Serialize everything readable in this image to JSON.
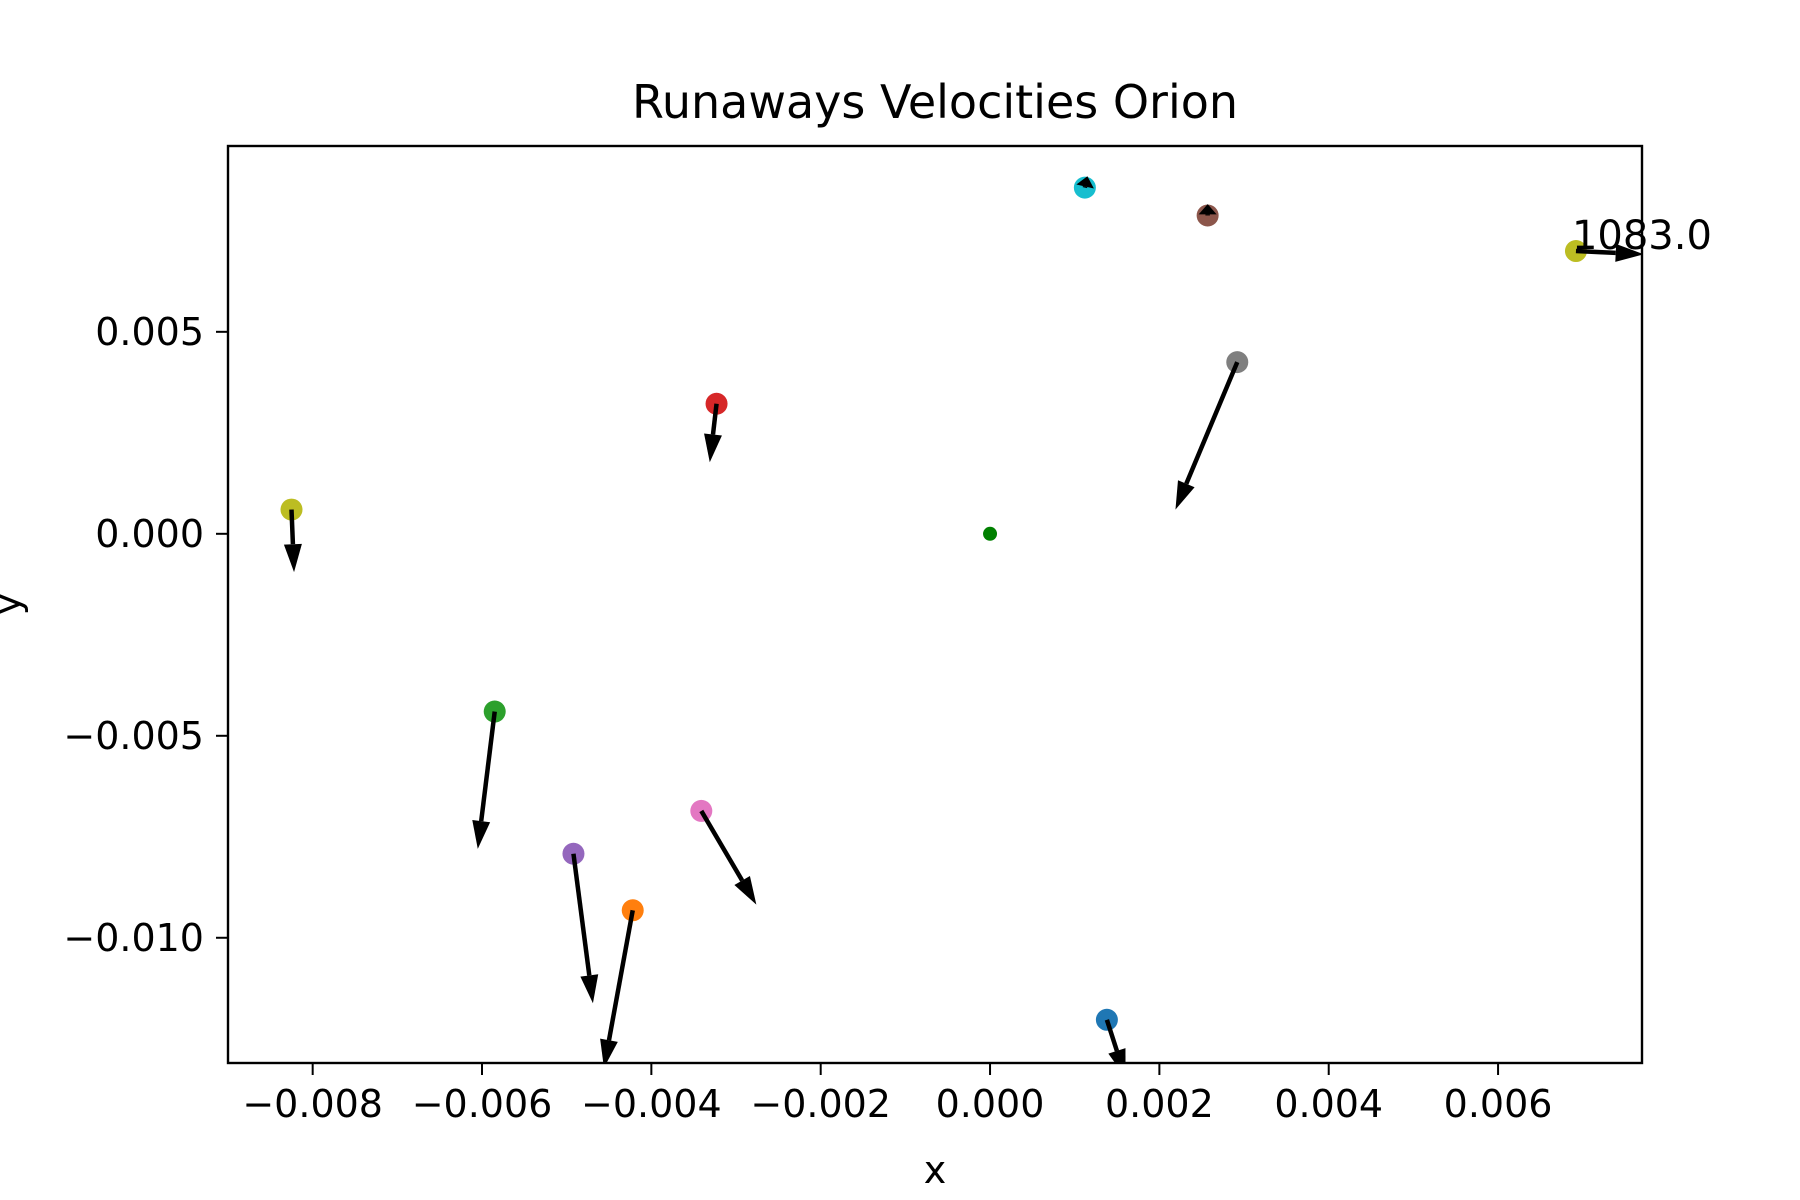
{
  "chart_data": {
    "type": "scatter",
    "title": "Runaways Velocities Orion",
    "xlabel": "x",
    "ylabel": "y",
    "xlim": [
      -0.009,
      0.0077
    ],
    "ylim": [
      -0.0131,
      0.0096
    ],
    "xticks": [
      -0.008,
      -0.006,
      -0.004,
      -0.002,
      0.0,
      0.002,
      0.004,
      0.006
    ],
    "xtick_labels": [
      "−0.008",
      "−0.006",
      "−0.004",
      "−0.002",
      "0.000",
      "0.002",
      "0.004",
      "0.006"
    ],
    "yticks": [
      0.005,
      0.0,
      -0.005,
      -0.01
    ],
    "ytick_labels": [
      "0.005",
      "0.000",
      "−0.005",
      "−0.010"
    ],
    "grid": false,
    "center": {
      "x": 0.0,
      "y": 0.0,
      "color": "#008000"
    },
    "points": [
      {
        "x": 0.00138,
        "y": -0.01203,
        "dx": 0.00022,
        "dy": -0.00143,
        "color": "#1f77b4"
      },
      {
        "x": -0.00422,
        "y": -0.00932,
        "dx": -0.00034,
        "dy": -0.0039,
        "color": "#ff7f0e"
      },
      {
        "x": -0.00585,
        "y": -0.0044,
        "dx": -0.0002,
        "dy": -0.0034,
        "color": "#2ca02c"
      },
      {
        "x": -0.00323,
        "y": 0.00322,
        "dx": -8e-05,
        "dy": -0.00145,
        "color": "#d62728"
      },
      {
        "x": -0.00492,
        "y": -0.00792,
        "dx": 0.00023,
        "dy": -0.0037,
        "color": "#9467bd"
      },
      {
        "x": 0.00257,
        "y": 0.00788,
        "dx": 0.0,
        "dy": 0.00028,
        "color": "#8c564b"
      },
      {
        "x": -0.00341,
        "y": -0.00686,
        "dx": 0.00065,
        "dy": -0.00232,
        "color": "#e377c2"
      },
      {
        "x": 0.00292,
        "y": 0.00425,
        "dx": -0.00073,
        "dy": -0.00365,
        "color": "#7f7f7f"
      },
      {
        "x": -0.00825,
        "y": 0.0006,
        "dx": 3e-05,
        "dy": -0.00155,
        "color": "#bcbd22"
      },
      {
        "x": 0.00112,
        "y": 0.00857,
        "dx": 3e-05,
        "dy": 0.00028,
        "color": "#17becf"
      },
      {
        "x": 0.00692,
        "y": 0.007,
        "dx": 0.0008,
        "dy": -8e-05,
        "color": "#bcbd22"
      }
    ],
    "annotations": [
      {
        "text": "1083.0",
        "x": 0.00692,
        "y": 0.007
      }
    ]
  }
}
